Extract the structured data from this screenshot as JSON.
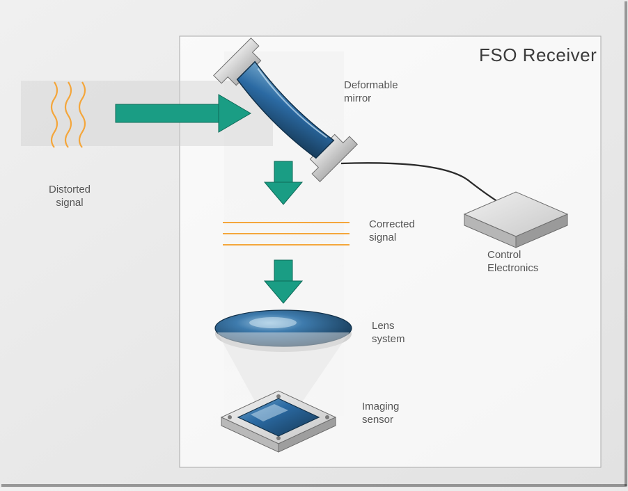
{
  "diagram": {
    "type": "infographic",
    "title": "FSO Receiver",
    "background_gradient": [
      "#f0f0f0",
      "#e2e2e2"
    ],
    "panel": {
      "border_color": "#a9a9a9",
      "fill": "#ffffff",
      "opacity": 0.67
    },
    "colors": {
      "arrow": "#1a9d84",
      "arrow_stroke": "#0f6b59",
      "blue_fill": "#2b6aa3",
      "blue_dark": "#153753",
      "blue_light": "#6da2c8",
      "metal_light": "#d5d5d5",
      "metal_mid": "#a7a7a7",
      "metal_dark": "#7a7a7a",
      "signal_line": "#f4a63b",
      "label_text": "#555555",
      "title_text": "#3a3a3a",
      "beam_fill": "#dcdcdc",
      "wire": "#2b2b2b"
    },
    "labels": {
      "distorted": "Distorted\nsignal",
      "mirror": "Deformable\nmirror",
      "corrected": "Corrected\nsignal",
      "electronics": "Control\nElectronics",
      "lens": "Lens\nsystem",
      "sensor": "Imaging\nsensor"
    },
    "fontsize_label": 15,
    "fontsize_title": 26
  }
}
